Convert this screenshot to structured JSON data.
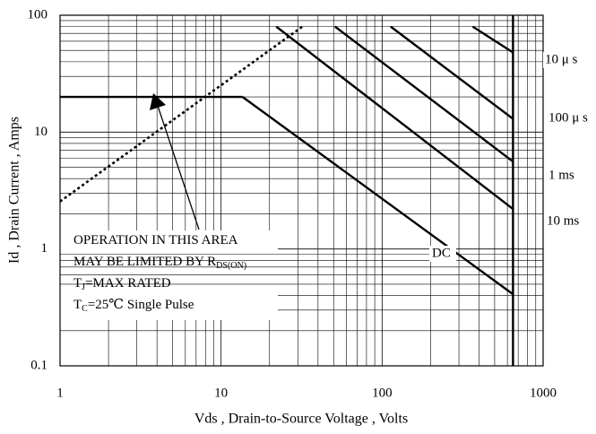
{
  "chart_data": {
    "type": "line",
    "x_label": "Vds , Drain-to-Source Voltage , Volts",
    "y_label": "Id , Drain Current , Amps",
    "log_x": true,
    "log_y": true,
    "grid": true,
    "xlim": [
      1,
      1000
    ],
    "ylim": [
      0.1,
      100
    ],
    "xticks": [
      1,
      10,
      100,
      1000
    ],
    "yticks": [
      0.1,
      1,
      10,
      100
    ],
    "series": [
      {
        "x": [
          1,
          32
        ],
        "values": [
          2.55,
          80
        ],
        "dash": "dotted"
      },
      {
        "x": [
          1,
          13.6
        ],
        "values": [
          20,
          20
        ]
      },
      {
        "name": "DC",
        "x": [
          13.6,
          650
        ],
        "values": [
          20,
          0.41
        ]
      },
      {
        "name": "10 ms",
        "x": [
          22,
          650
        ],
        "values": [
          80,
          2.2
        ]
      },
      {
        "name": "1 ms",
        "x": [
          51,
          650
        ],
        "values": [
          80,
          5.6
        ]
      },
      {
        "name": "100 μ s",
        "x": [
          113,
          650
        ],
        "values": [
          80,
          13
        ]
      },
      {
        "name": "10 μ s",
        "x": [
          365,
          650
        ],
        "values": [
          80,
          48
        ]
      },
      {
        "x": [
          650,
          650
        ],
        "values": [
          0.1,
          100
        ]
      }
    ],
    "annotation": [
      [
        "OPERATION IN THIS AREA"
      ],
      [
        "MAY BE LIMITED BY R",
        "DS(ON)"
      ],
      [
        "T",
        "J",
        "=MAX RATED"
      ],
      [
        "T",
        "C",
        "=25℃  Single Pulse"
      ]
    ]
  }
}
